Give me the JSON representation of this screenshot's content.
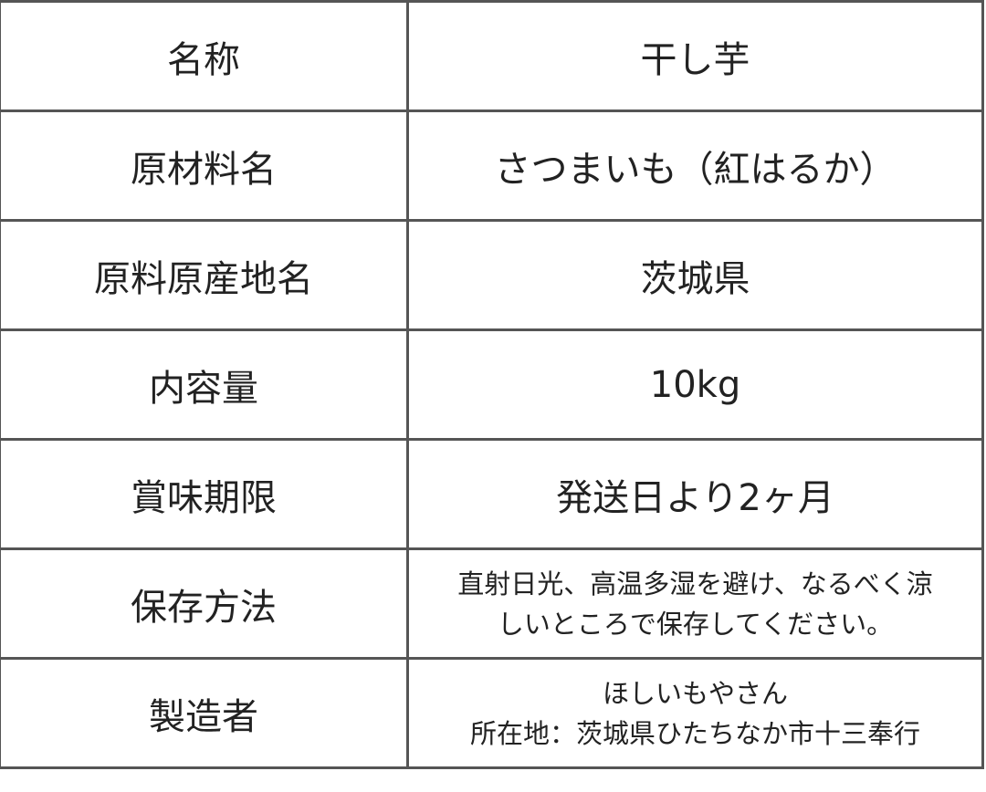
{
  "rows": [
    {
      "label": "名称",
      "value": [
        "干し芋"
      ]
    },
    {
      "label": "原材料名",
      "value": [
        "さつまいも（紅はるか）"
      ]
    },
    {
      "label": "原料原産地名",
      "value": [
        "茨城県"
      ]
    },
    {
      "label": "内容量",
      "value": [
        "10kg"
      ]
    },
    {
      "label": "賞味期限",
      "value": [
        "発送日より2ヶ月"
      ]
    },
    {
      "label": "保存方法",
      "value": [
        "直射日光、高温多湿を避け、なるべく涼",
        "しいところで保存してください。"
      ]
    },
    {
      "label": "製造者",
      "value": [
        "ほしいもやさん",
        "所在地：茨城県ひたちなか市十三奉行"
      ]
    }
  ]
}
